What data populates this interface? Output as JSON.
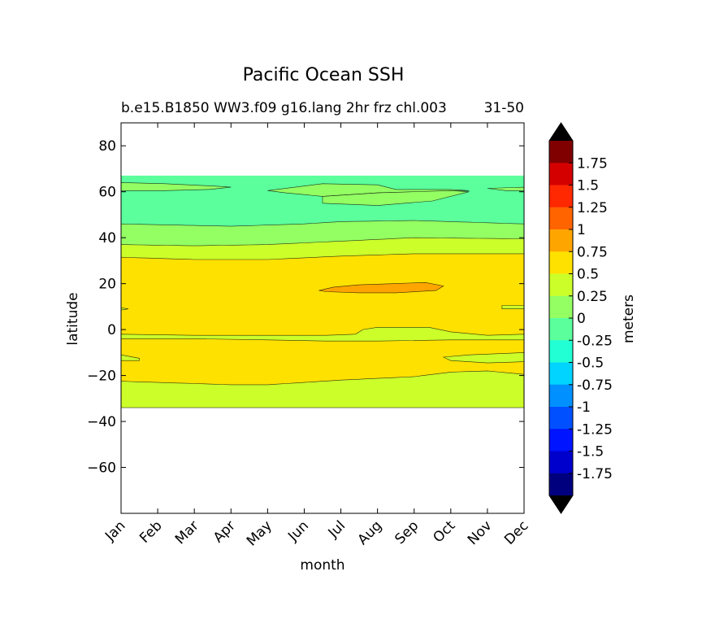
{
  "chart_data": {
    "type": "heatmap",
    "title": "Pacific Ocean SSH",
    "subtitle_left": "b.e15.B1850 WW3.f09 g16.lang 2hr frz chl.003",
    "subtitle_right": "31-50",
    "xlabel": "month",
    "ylabel": "latitude",
    "colorbar_label": "meters",
    "x_ticks": [
      "Jan",
      "Feb",
      "Mar",
      "Apr",
      "May",
      "Jun",
      "Jul",
      "Aug",
      "Sep",
      "Oct",
      "Nov",
      "Dec"
    ],
    "y_ticks": [
      "80",
      "60",
      "40",
      "20",
      "0",
      "−20",
      "−40",
      "−60"
    ],
    "y_tick_values": [
      80,
      60,
      40,
      20,
      0,
      -20,
      -40,
      -60
    ],
    "ylim": [
      -80,
      90
    ],
    "xlim": [
      1,
      12
    ],
    "data_lat_range": [
      -34,
      67
    ],
    "colorbar": {
      "extend": "both",
      "levels": [
        "1.75",
        "1.5",
        "1.25",
        "1",
        "0.75",
        "0.5",
        "0.25",
        "0",
        "-0.25",
        "-0.5",
        "-0.75",
        "-1",
        "-1.25",
        "-1.5",
        "-1.75"
      ],
      "colors_top_to_bottom": [
        "#800000",
        "#d40000",
        "#ff2800",
        "#ff6400",
        "#ffa500",
        "#ffe100",
        "#ccff2a",
        "#93ff63",
        "#5bff9c",
        "#22ffd4",
        "#00d4ff",
        "#0090ff",
        "#0050ff",
        "#0014ff",
        "#0000cd",
        "#00007f"
      ],
      "extend_color": "#000000"
    },
    "regions": [
      {
        "level": "0 to 0.25",
        "color": "#93ff63",
        "lat_range": [
          60,
          64
        ],
        "months": "Jan-Apr"
      },
      {
        "level": "-0.25 to 0",
        "color": "#5bff9c",
        "lat_range": [
          45,
          67
        ],
        "months": "Jan-Dec"
      },
      {
        "level": "0 to 0.25",
        "color": "#93ff63",
        "lat_range": [
          37,
          47
        ],
        "months": "Jan-Dec"
      },
      {
        "level": "0.25 to 0.5",
        "color": "#ccff2a",
        "lat_range": [
          31,
          40
        ],
        "months": "Jan-Dec"
      },
      {
        "level": "0.5 to 0.75",
        "color": "#ffe100",
        "lat_range": [
          -24,
          32
        ],
        "months": "Jan-Dec"
      },
      {
        "level": "0.75 to 1",
        "color": "#ffa500",
        "lat_range": [
          16,
          21
        ],
        "months": "Jun-Sep"
      },
      {
        "level": "0.25 to 0.5",
        "color": "#ccff2a",
        "lat_range": [
          -4,
          1
        ],
        "months": "Jun-Oct"
      },
      {
        "level": "0.25 to 0.5",
        "color": "#ccff2a",
        "lat_range": [
          -34,
          -18
        ],
        "months": "Jan-Dec"
      }
    ]
  }
}
